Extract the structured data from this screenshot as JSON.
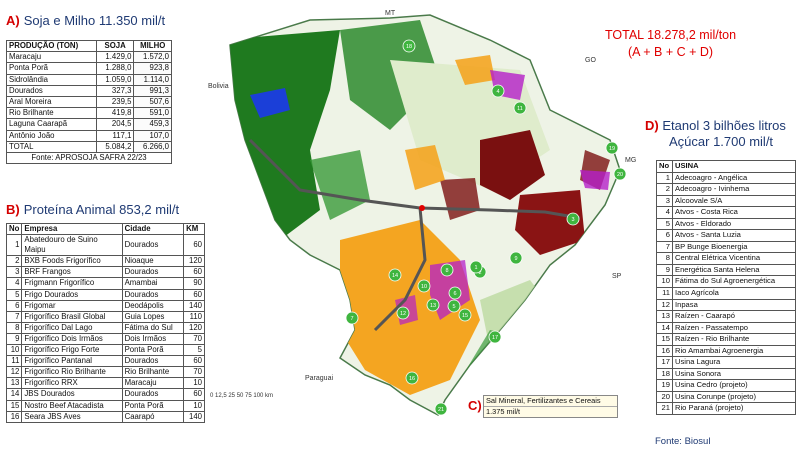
{
  "section_a": {
    "letter": "A)",
    "title": "Soja e Milho 11.350 mil/t",
    "headers": [
      "PRODUÇÃO (TON)",
      "SOJA",
      "MILHO"
    ],
    "rows": [
      [
        "Maracaju",
        "1.429,0",
        "1.572,0"
      ],
      [
        "Ponta Porã",
        "1.288,0",
        "923,8"
      ],
      [
        "Sidrolândia",
        "1.059,0",
        "1.114,0"
      ],
      [
        "Dourados",
        "327,3",
        "991,3"
      ],
      [
        "Aral Moreira",
        "239,5",
        "507,6"
      ],
      [
        "Rio Brilhante",
        "419,8",
        "591,0"
      ],
      [
        "Laguna Caarapã",
        "204,5",
        "459,3"
      ],
      [
        "Antônio João",
        "117,1",
        "107,0"
      ],
      [
        "TOTAL",
        "5.084,2",
        "6.266,0"
      ]
    ],
    "source": "Fonte: APROSOJA SAFRA 22/23"
  },
  "section_b": {
    "letter": "B)",
    "title": "Proteína Animal 853,2 mil/t",
    "headers": [
      "No",
      "Empresa",
      "Cidade",
      "KM"
    ],
    "rows": [
      [
        "1",
        "Abatedouro de Suino\nMaipu",
        "Dourados",
        "60"
      ],
      [
        "2",
        "BXB Foods Frigorífico",
        "Nioaque",
        "120"
      ],
      [
        "3",
        "BRF Frangos",
        "Dourados",
        "60"
      ],
      [
        "4",
        "Frigmann Frigorífico",
        "Amambai",
        "90"
      ],
      [
        "5",
        "Frigo Dourados",
        "Dourados",
        "60"
      ],
      [
        "6",
        "Frigomar",
        "Deodápolis",
        "140"
      ],
      [
        "7",
        "Frigorífico Brasil Global",
        "Guia Lopes",
        "110"
      ],
      [
        "8",
        "Frigorífico Dal Lago",
        "Fátima do Sul",
        "120"
      ],
      [
        "9",
        "Frigorífico Dois Irmãos",
        "Dois Irmãos",
        "70"
      ],
      [
        "10",
        "Frigorífico Frigo Forte",
        "Ponta Porã",
        "5"
      ],
      [
        "11",
        "Frigorífico Pantanal",
        "Dourados",
        "60"
      ],
      [
        "12",
        "Frigorífico Rio Brilhante",
        "Rio Brilhante",
        "70"
      ],
      [
        "13",
        "Frigorífico RRX",
        "Maracaju",
        "10"
      ],
      [
        "14",
        "JBS Dourados",
        "Dourados",
        "60"
      ],
      [
        "15",
        "Nostro Beef Atacadista",
        "Ponta Porã",
        "10"
      ],
      [
        "16",
        "Seara JBS Aves",
        "Caarapó",
        "140"
      ]
    ]
  },
  "total": {
    "line1": "TOTAL 18.278,2 mil/ton",
    "line2": "(A + B + C + D)"
  },
  "section_d": {
    "letter": "D)",
    "title_line1": "Etanol 3 bilhões litros",
    "title_line2": "Açúcar 1.700 mil/t",
    "headers": [
      "No",
      "USINA"
    ],
    "rows": [
      [
        "1",
        "Adecoagro - Angélica"
      ],
      [
        "2",
        "Adecoagro - Ivinhema"
      ],
      [
        "3",
        "Alcoovale S/A"
      ],
      [
        "4",
        "Atvos - Costa Rica"
      ],
      [
        "5",
        "Atvos - Eldorado"
      ],
      [
        "6",
        "Atvos - Santa Luzia"
      ],
      [
        "7",
        "BP Bunge Bioenergia"
      ],
      [
        "8",
        "Central Elétrica Vicentina"
      ],
      [
        "9",
        "Energética Santa Helena"
      ],
      [
        "10",
        "Fátima do Sul Agroenergética"
      ],
      [
        "11",
        "Iaco Agrícola"
      ],
      [
        "12",
        "Inpasa"
      ],
      [
        "13",
        "Raízen - Caarapó"
      ],
      [
        "14",
        "Raízen - Passatempo"
      ],
      [
        "15",
        "Raízen - Rio Brilhante"
      ],
      [
        "16",
        "Rio Amambai Agroenergia"
      ],
      [
        "17",
        "Usina Lagura"
      ],
      [
        "18",
        "Usina Sonora"
      ],
      [
        "19",
        "Usina Cedro (projeto)"
      ],
      [
        "20",
        "Usina Corunpe (projeto)"
      ],
      [
        "21",
        "Rio Paraná (projeto)"
      ]
    ],
    "source": "Fonte: Biosul"
  },
  "section_c": {
    "letter": "C)",
    "label": "Sal Mineral, Fertilizantes e Cereais",
    "value": "1.375 mil/t"
  },
  "map": {
    "labels": {
      "mt": "MT",
      "go": "GO",
      "mg": "MG",
      "sp": "SP",
      "bolivia": "Bolivia",
      "paraguai": "Paraguai"
    },
    "scale_text": "0 12,5 25   50   75   100 km",
    "markers": [
      "18",
      "4",
      "11",
      "3",
      "19",
      "20",
      "9",
      "2",
      "1",
      "8",
      "14",
      "10",
      "13",
      "12",
      "7",
      "5",
      "15",
      "6",
      "17",
      "16",
      "21"
    ],
    "colors": {
      "forest": "#1f7a1f",
      "pasture": "#e9f2de",
      "crops": "#f4a521",
      "cane": "#b51fc9",
      "eucalyptus": "#7a1010",
      "water": "#1b3fd8",
      "marker": "#3fb53f",
      "road": "#555555"
    }
  }
}
